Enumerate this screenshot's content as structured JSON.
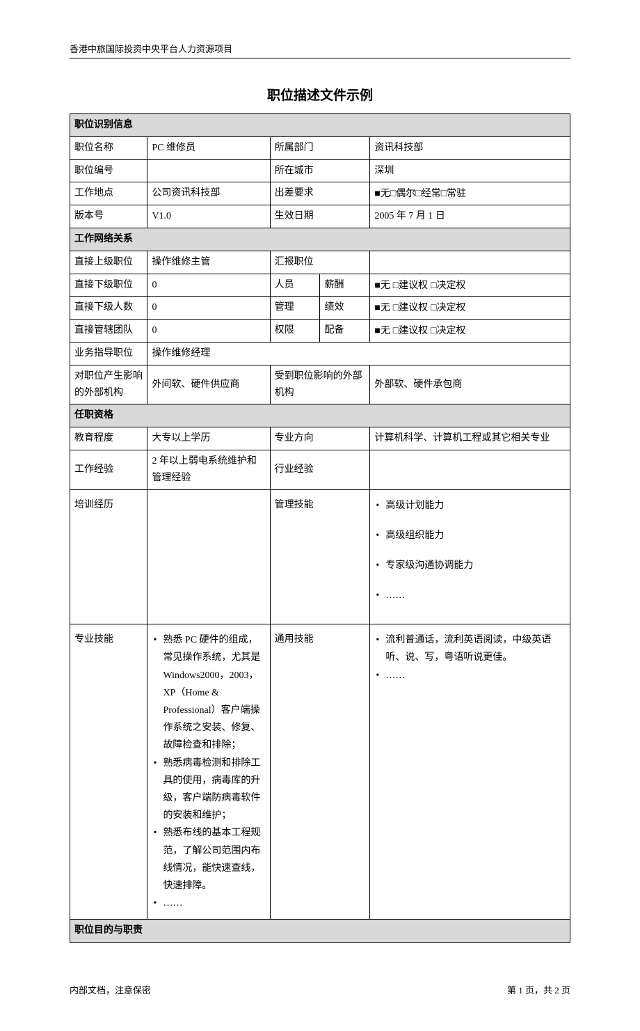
{
  "page": {
    "header": "香港中旅国际投资中央平台人力资源项目",
    "title": "职位描述文件示例",
    "footer_left": "内部文档，注意保密",
    "footer_right": "第 1 页，共 2 页"
  },
  "sections": {
    "s1": "职位识别信息",
    "s2": "工作网络关系",
    "s3": "任职资格",
    "s4": "职位目的与职责"
  },
  "id_info": {
    "position_name_lbl": "职位名称",
    "position_name": "PC 维修员",
    "dept_lbl": "所属部门",
    "dept": "资讯科技部",
    "position_no_lbl": "职位编号",
    "position_no": "",
    "city_lbl": "所在城市",
    "city": "深圳",
    "work_loc_lbl": "工作地点",
    "work_loc": "公司资讯科技部",
    "travel_lbl": "出差要求",
    "travel": "■无□偶尔□经常□常驻",
    "version_lbl": "版本号",
    "version": "V1.0",
    "effect_lbl": "生效日期",
    "effect": "2005 年 7 月 1 日"
  },
  "network": {
    "sup_lbl": "直接上级职位",
    "sup": "操作维修主管",
    "report_lbl": "汇报职位",
    "report": "",
    "sub_pos_lbl": "直接下级职位",
    "sub_pos": "0",
    "sub_cnt_lbl": "直接下级人数",
    "sub_cnt": "0",
    "team_lbl": "直接管辖团队",
    "team": "0",
    "mgmt_row1_lbl": "人员",
    "mgmt_row2_lbl": "管理",
    "mgmt_row3_lbl": "权限",
    "col2_row1": "薪酬",
    "col2_row2": "绩效",
    "col2_row3": "配备",
    "auth_opt": "■无 □建议权 □决定权",
    "biz_guide_lbl": "业务指导职位",
    "biz_guide": "操作维修经理",
    "ext_in_lbl": "对职位产生影响的外部机构",
    "ext_in": "外间软、硬件供应商",
    "ext_out_lbl": "受到职位影响的外部机构",
    "ext_out": "外部软、硬件承包商"
  },
  "qual": {
    "edu_lbl": "教育程度",
    "edu": "大专以上学历",
    "major_lbl": "专业方向",
    "major": "计算机科学、计算机工程或其它相关专业",
    "work_exp_lbl": "工作经验",
    "work_exp": "2 年以上弱电系统维护和管理经验",
    "ind_exp_lbl": "行业经验",
    "ind_exp": "",
    "train_lbl": "培训经历",
    "train": "",
    "mgmt_skill_lbl": "管理技能",
    "mgmt_skills": [
      "高级计划能力",
      "高级组织能力",
      "专家级沟通协调能力",
      "……"
    ],
    "prof_skill_lbl": "专业技能",
    "prof_skills": [
      "熟悉 PC 硬件的组成，常见操作系统，尤其是 Windows2000，2003，XP（Home & Professional）客户端操作系统之安装、修复、故障检查和排除；",
      "熟悉病毒检测和排除工具的使用，病毒库的升级，客户端防病毒软件的安装和维护；",
      "熟悉布线的基本工程规范，了解公司范围内布线情况，能快速查线，快速排障。",
      "……"
    ],
    "gen_skill_lbl": "通用技能",
    "gen_skills": [
      "流利普通话，流利英语阅读，中级英语听、说、写，粤语听说更佳。",
      "……"
    ]
  },
  "style": {
    "col_widths": [
      "15.5%",
      "24.5%",
      "10%",
      "10%",
      "40%"
    ],
    "border_color": "#000000",
    "header_bg": "#d9d9d9",
    "page_bg": "#ffffff",
    "font_size_body": 14,
    "font_size_title": 19,
    "font_size_header": 13
  }
}
